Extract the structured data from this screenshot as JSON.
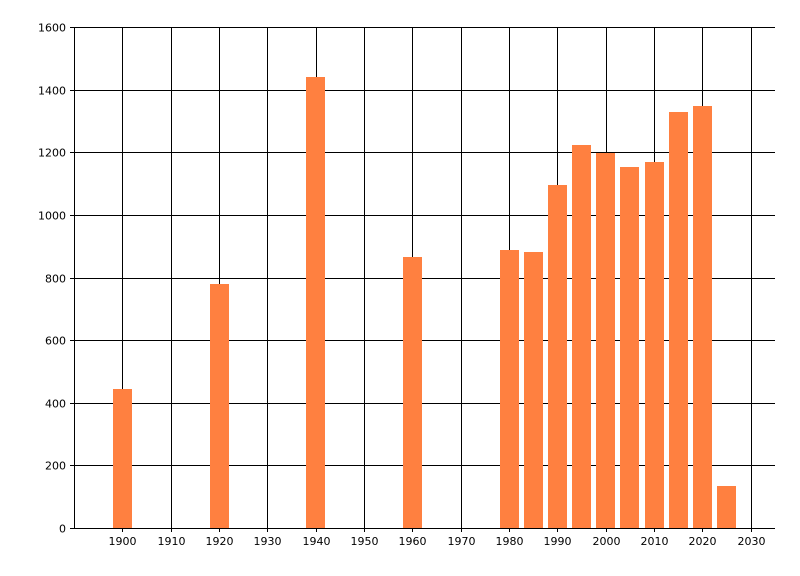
{
  "chart_data": {
    "type": "bar",
    "x": [
      1900,
      1920,
      1940,
      1960,
      1980,
      1985,
      1990,
      1995,
      2000,
      2005,
      2010,
      2015,
      2020,
      2025
    ],
    "values": [
      443,
      780,
      1440,
      864,
      889,
      880,
      1097,
      1224,
      1198,
      1154,
      1170,
      1327,
      1349,
      135
    ],
    "xlim": [
      1890,
      2035
    ],
    "ylim": [
      0,
      1600
    ],
    "x_ticks": [
      1900,
      1910,
      1920,
      1930,
      1940,
      1950,
      1960,
      1970,
      1980,
      1990,
      2000,
      2010,
      2020,
      2030
    ],
    "y_ticks": [
      0,
      200,
      400,
      600,
      800,
      1000,
      1200,
      1400,
      1600
    ],
    "bar_color": "#ff8040",
    "grid": true,
    "title": "",
    "xlabel": "",
    "ylabel": ""
  }
}
